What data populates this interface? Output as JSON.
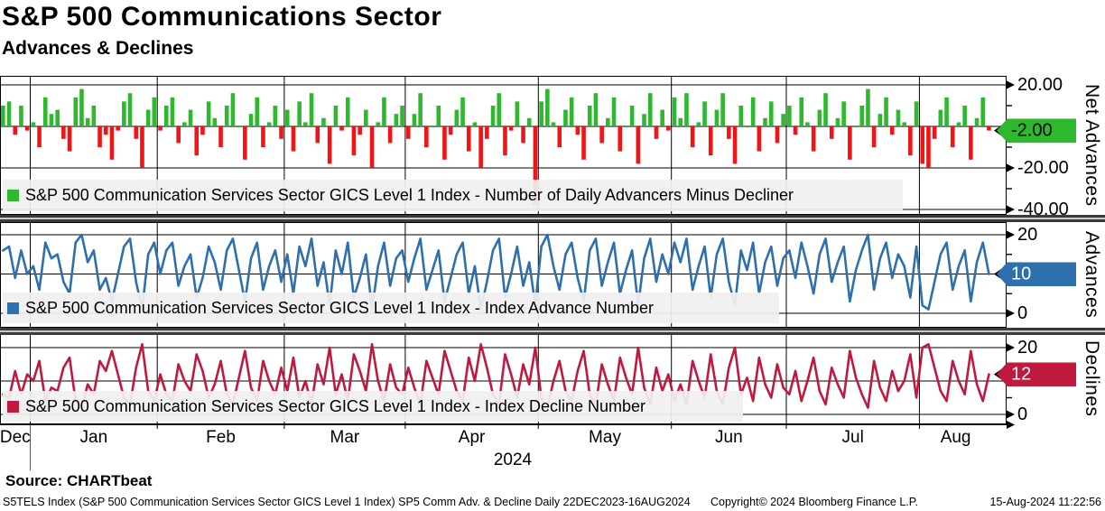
{
  "header": {
    "title": "S&P 500 Communications Sector",
    "subtitle": "Advances & Declines"
  },
  "colors": {
    "advance_green": "#2eb82e",
    "decline_red": "#f01414",
    "advances_blue": "#2e6fad",
    "declines_crimson": "#bf1a3e",
    "grid_black": "#000000",
    "separator_gray": "#3a3a3a",
    "legend_bg": "#f0f0f0"
  },
  "x_axis": {
    "year": "2024",
    "months": [
      {
        "label": "Dec",
        "start_index": 0
      },
      {
        "label": "Jan",
        "start_index": 5
      },
      {
        "label": "Feb",
        "start_index": 26
      },
      {
        "label": "Mar",
        "start_index": 47
      },
      {
        "label": "Apr",
        "start_index": 67
      },
      {
        "label": "May",
        "start_index": 89
      },
      {
        "label": "Jun",
        "start_index": 111
      },
      {
        "label": "Jul",
        "start_index": 130
      },
      {
        "label": "Aug",
        "start_index": 152
      }
    ],
    "total_days": 164,
    "range": "22DEC2023-16AUG2024"
  },
  "panels": [
    {
      "name": "net_advances",
      "axis_label": "Net Advances",
      "legend": "S&P 500 Communication Services Sector GICS Level 1 Index - Number of Daily Advancers Minus Decliner",
      "badge": {
        "label": "-2.00",
        "value": -2
      },
      "ticks": [
        {
          "value": 20,
          "label": "20.00"
        },
        {
          "value": -20,
          "label": "-20.00"
        },
        {
          "value": -40,
          "label": "-40.00"
        }
      ]
    },
    {
      "name": "advances",
      "axis_label": "Advances",
      "legend": "S&P 500 Communication Services Sector GICS Level 1 Index - Index Advance Number",
      "badge": {
        "label": "10",
        "value": 10
      },
      "ticks": [
        {
          "value": 20,
          "label": "20"
        },
        {
          "value": 10,
          "label": "10"
        },
        {
          "value": 0,
          "label": "0"
        }
      ]
    },
    {
      "name": "declines",
      "axis_label": "Declines",
      "legend": "S&P 500 Communication Services Sector GICS Level 1 Index - Index Decline Number",
      "badge": {
        "label": "12",
        "value": 12
      },
      "ticks": [
        {
          "value": 20,
          "label": "20"
        },
        {
          "value": 10,
          "label": "10"
        },
        {
          "value": 0,
          "label": "0"
        }
      ]
    }
  ],
  "chart_data": [
    {
      "type": "bar",
      "title": "Net Advances (Number of Daily Advancers Minus Decliners)",
      "ylim": [
        -42,
        24
      ],
      "grid_values": [
        20,
        0,
        -20,
        -40
      ],
      "last_value": -2,
      "series": [
        {
          "name": "net_advances_minus_declines",
          "values": [
            10,
            12,
            -4,
            10,
            -2,
            2,
            -10,
            14,
            6,
            8,
            -6,
            -12,
            14,
            18,
            4,
            10,
            -10,
            -4,
            -16,
            -2,
            12,
            16,
            -6,
            -20,
            8,
            14,
            -2,
            10,
            14,
            -8,
            2,
            8,
            -14,
            -4,
            12,
            4,
            -10,
            10,
            16,
            0,
            -16,
            6,
            14,
            -10,
            2,
            10,
            -6,
            8,
            -12,
            12,
            2,
            16,
            -8,
            4,
            -18,
            10,
            -2,
            14,
            -14,
            -4,
            8,
            -20,
            2,
            14,
            -8,
            6,
            10,
            -6,
            6,
            16,
            -10,
            0,
            10,
            -16,
            -4,
            8,
            14,
            -12,
            2,
            -20,
            -6,
            10,
            16,
            -14,
            -2,
            12,
            -8,
            4,
            -38,
            12,
            18,
            2,
            -10,
            8,
            14,
            -4,
            -16,
            10,
            16,
            -8,
            4,
            14,
            -12,
            0,
            10,
            -18,
            6,
            16,
            -6,
            8,
            -2,
            14,
            4,
            16,
            -10,
            2,
            12,
            -14,
            8,
            16,
            -6,
            -18,
            10,
            0,
            14,
            -12,
            4,
            12,
            -8,
            6,
            10,
            -4,
            14,
            2,
            -12,
            8,
            16,
            -6,
            4,
            12,
            -16,
            0,
            10,
            18,
            -10,
            6,
            14,
            -4,
            8,
            2,
            -14,
            12,
            -18,
            -20,
            -6,
            8,
            14,
            -10,
            2,
            10,
            -16,
            4,
            14,
            -2
          ]
        }
      ]
    },
    {
      "type": "line",
      "title": "Index Advance Number",
      "ylim": [
        -4,
        26
      ],
      "grid_values": [
        20,
        10,
        0
      ],
      "last_value": 10,
      "series": [
        {
          "name": "index_advance_number",
          "values": [
            16,
            17,
            9,
            16,
            10,
            12,
            6,
            18,
            14,
            15,
            8,
            5,
            18,
            20,
            13,
            16,
            6,
            9,
            3,
            10,
            17,
            19,
            8,
            1,
            15,
            18,
            10,
            16,
            18,
            7,
            12,
            15,
            4,
            9,
            17,
            13,
            6,
            16,
            19,
            11,
            3,
            14,
            18,
            6,
            12,
            16,
            8,
            15,
            5,
            17,
            12,
            19,
            7,
            13,
            2,
            16,
            10,
            18,
            4,
            9,
            15,
            1,
            12,
            18,
            7,
            14,
            16,
            8,
            14,
            19,
            6,
            11,
            16,
            3,
            9,
            15,
            18,
            5,
            12,
            1,
            8,
            16,
            19,
            4,
            10,
            17,
            7,
            13,
            2,
            17,
            20,
            12,
            6,
            15,
            18,
            9,
            3,
            16,
            19,
            7,
            13,
            18,
            5,
            11,
            16,
            2,
            14,
            19,
            8,
            15,
            10,
            18,
            13,
            19,
            6,
            12,
            17,
            4,
            15,
            19,
            8,
            2,
            16,
            11,
            18,
            5,
            13,
            17,
            7,
            14,
            16,
            9,
            18,
            12,
            5,
            15,
            19,
            8,
            13,
            17,
            3,
            11,
            16,
            20,
            6,
            14,
            18,
            9,
            15,
            12,
            4,
            17,
            2,
            1,
            8,
            15,
            18,
            6,
            12,
            16,
            3,
            13,
            18,
            10
          ]
        }
      ]
    },
    {
      "type": "line",
      "title": "Index Decline Number",
      "ylim": [
        -3,
        24
      ],
      "grid_values": [
        20,
        10,
        0
      ],
      "last_value": 12,
      "series": [
        {
          "name": "index_decline_number",
          "values": [
            6,
            5,
            13,
            6,
            12,
            10,
            16,
            4,
            8,
            7,
            14,
            17,
            4,
            2,
            9,
            6,
            16,
            13,
            19,
            12,
            5,
            3,
            14,
            21,
            7,
            4,
            12,
            6,
            4,
            15,
            10,
            7,
            18,
            13,
            5,
            9,
            16,
            6,
            3,
            11,
            19,
            8,
            4,
            16,
            10,
            6,
            14,
            7,
            17,
            5,
            10,
            3,
            15,
            9,
            20,
            6,
            12,
            4,
            18,
            13,
            7,
            21,
            10,
            4,
            15,
            8,
            6,
            14,
            8,
            3,
            16,
            11,
            6,
            19,
            13,
            7,
            4,
            17,
            10,
            21,
            14,
            6,
            3,
            18,
            12,
            5,
            15,
            9,
            20,
            5,
            2,
            10,
            16,
            7,
            4,
            13,
            19,
            6,
            3,
            15,
            9,
            4,
            17,
            11,
            6,
            20,
            8,
            3,
            14,
            7,
            12,
            4,
            9,
            3,
            16,
            10,
            5,
            18,
            7,
            3,
            14,
            20,
            6,
            11,
            4,
            17,
            9,
            5,
            15,
            8,
            6,
            13,
            4,
            10,
            17,
            7,
            3,
            14,
            9,
            5,
            19,
            11,
            6,
            2,
            16,
            8,
            4,
            13,
            7,
            10,
            18,
            5,
            20,
            21,
            14,
            7,
            4,
            16,
            10,
            6,
            19,
            9,
            4,
            12
          ]
        }
      ]
    }
  ],
  "footer": {
    "source": "Source: CHARTbeat",
    "description": "S5TELS Index (S&P 500 Communication Services Sector GICS Level 1 Index) SP5 Comm Adv. & Decline  Daily 22DEC2023-16AUG2024",
    "copyright": "Copyright© 2024 Bloomberg Finance L.P.",
    "datetime": "15-Aug-2024 11:22:56"
  }
}
